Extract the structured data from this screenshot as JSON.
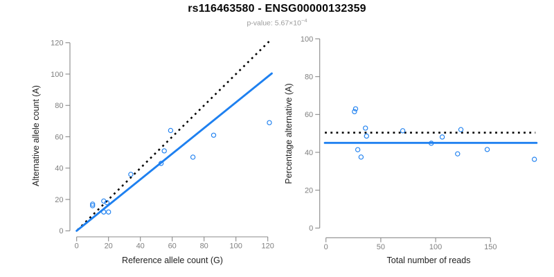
{
  "header": {
    "title": "rs116463580 - ENSG00000132359",
    "pvalue_label": "p-value: ",
    "pvalue_mantissa": "5.67×10",
    "pvalue_exponent": "−4"
  },
  "colors": {
    "accent_blue": "#1E80F0",
    "dotted_black": "#000000",
    "axis_gray": "#898989",
    "tick_label_gray": "#7f7f7f",
    "axis_title_color": "#1f1f1f",
    "subtitle_gray": "#9b9b9b"
  },
  "chart_data": [
    {
      "type": "scatter",
      "panel": "allele-counts",
      "xlabel": "Reference allele count (G)",
      "ylabel": "Alternative allele count (A)",
      "xlim": [
        0,
        121
      ],
      "ylim": [
        0,
        122
      ],
      "xticks": [
        0,
        20,
        40,
        60,
        80,
        100,
        120
      ],
      "yticks": [
        0,
        20,
        40,
        60,
        80,
        100,
        120
      ],
      "grid": false,
      "legend": false,
      "points": [
        [
          10,
          17
        ],
        [
          10,
          16
        ],
        [
          17,
          12
        ],
        [
          20,
          12
        ],
        [
          17,
          19
        ],
        [
          19,
          18
        ],
        [
          34,
          36
        ],
        [
          53,
          43
        ],
        [
          55,
          51
        ],
        [
          59,
          64
        ],
        [
          73,
          47
        ],
        [
          86,
          61
        ],
        [
          121,
          69
        ]
      ],
      "lines": [
        {
          "name": "identity-reference-line",
          "style": "dotted",
          "color": "#000000",
          "from": [
            0.5,
            0.5
          ],
          "to": [
            122,
            122
          ]
        },
        {
          "name": "fitted-proportion-line",
          "style": "solid",
          "color": "#1E80F0",
          "from": [
            0,
            0
          ],
          "to": [
            122.5,
            100.4
          ]
        }
      ]
    },
    {
      "type": "scatter",
      "panel": "percentage-vs-depth",
      "xlabel": "Total number of reads",
      "ylabel": "Percentage alternative (A)",
      "xlim": [
        0,
        190
      ],
      "ylim": [
        0,
        100
      ],
      "xticks": [
        0,
        50,
        100,
        150
      ],
      "yticks": [
        0,
        20,
        40,
        60,
        80,
        100
      ],
      "grid": false,
      "legend": false,
      "points": [
        [
          27,
          63.0
        ],
        [
          26,
          61.5
        ],
        [
          29,
          41.4
        ],
        [
          32,
          37.5
        ],
        [
          36,
          52.8
        ],
        [
          37,
          48.6
        ],
        [
          70,
          51.4
        ],
        [
          96,
          44.8
        ],
        [
          106,
          48.1
        ],
        [
          123,
          52.0
        ],
        [
          120,
          39.2
        ],
        [
          147,
          41.5
        ],
        [
          190,
          36.3
        ]
      ],
      "lines": [
        {
          "name": "expected-50pct-line",
          "style": "dotted",
          "color": "#000000",
          "from": [
            -1,
            50.4
          ],
          "to": [
            191,
            50.4
          ]
        },
        {
          "name": "fitted-percentage-line",
          "style": "solid",
          "color": "#1E80F0",
          "from": [
            -1,
            45.0
          ],
          "to": [
            192,
            45.0
          ]
        }
      ]
    }
  ]
}
